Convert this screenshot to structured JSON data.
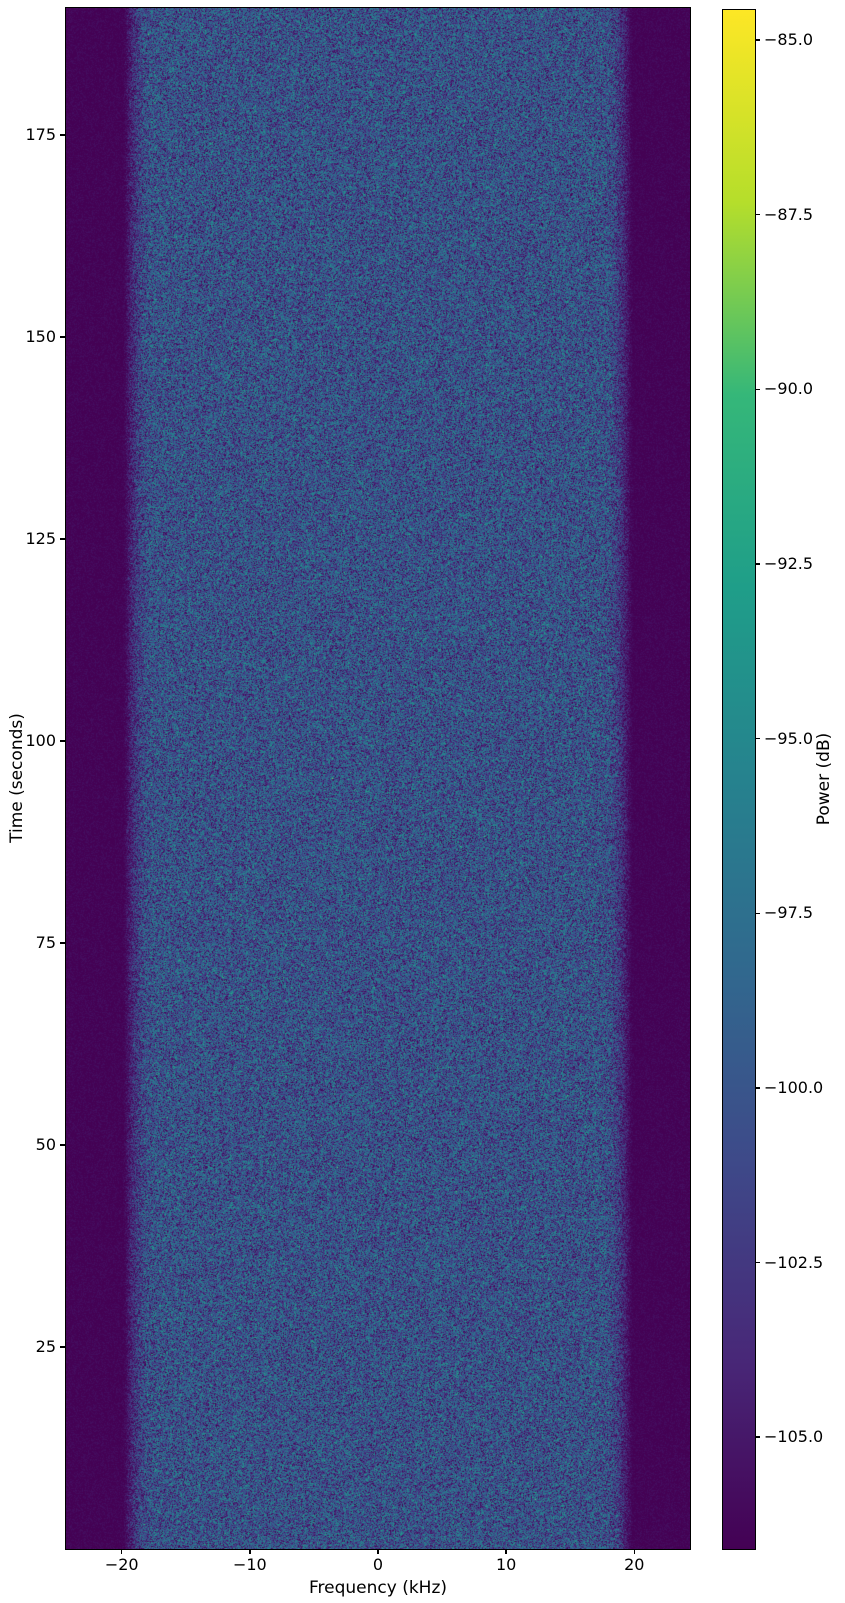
{
  "figure": {
    "background": "#ffffff",
    "title": ""
  },
  "chart_data": {
    "type": "heatmap",
    "subtype": "spectrogram",
    "title": "",
    "xlabel": "Frequency (kHz)",
    "ylabel": "Time (seconds)",
    "xlim": [
      -24.35,
      24.35
    ],
    "ylim": [
      0,
      190.7
    ],
    "xticks": [
      -20,
      -10,
      0,
      10,
      20
    ],
    "xtick_labels": [
      "−20",
      "−10",
      "0",
      "10",
      "20"
    ],
    "yticks": [
      25,
      50,
      75,
      100,
      125,
      150,
      175
    ],
    "ytick_labels": [
      "25",
      "50",
      "75",
      "100",
      "125",
      "150",
      "175"
    ],
    "grid": false,
    "legend": "none",
    "colorbar": {
      "label": "Power (dB)",
      "vmin": -106.6,
      "vmax": -84.57,
      "ticks": [
        -85.0,
        -87.5,
        -90.0,
        -92.5,
        -95.0,
        -97.5,
        -100.0,
        -102.5,
        -105.0
      ],
      "tick_labels": [
        "−85.0",
        "−87.5",
        "−90.0",
        "−92.5",
        "−95.0",
        "−97.5",
        "−100.0",
        "−102.5",
        "−105.0"
      ],
      "colormap": "viridis"
    },
    "content": {
      "description": "Wideband noise spectrogram: occupied noise band from about -17.5 kHz to +17.5 kHz with smooth rolloff to about ±20 kHz; uniform dark noise floor outside the band; no time-varying features over 0–190 s",
      "band_fullpower_khz": 17.5,
      "band_zero_khz": 20.0,
      "noise_floor_db": -106.8,
      "inband_median_db": -101.5,
      "inband_p90_db": -97.0
    },
    "viridis_stops": [
      "#440154",
      "#482878",
      "#3e4989",
      "#31688e",
      "#26828e",
      "#1f9e89",
      "#35b779",
      "#b5de2b",
      "#fde725"
    ],
    "accent_colors": {
      "noise_floor": "#450559",
      "inband_median": "#44387e",
      "inband_bright": "#2d708e"
    }
  }
}
